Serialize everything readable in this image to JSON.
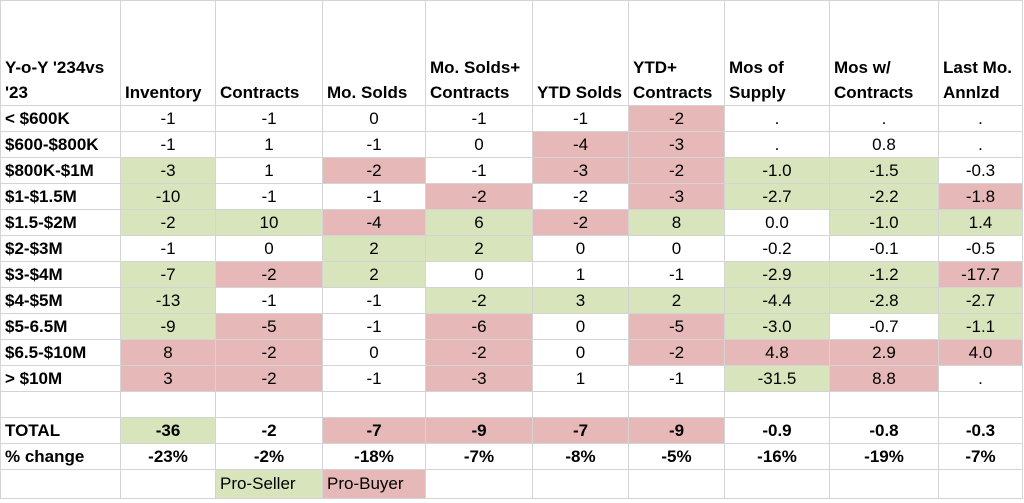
{
  "colors": {
    "green": "#d8e4bc",
    "red": "#e6b8b7",
    "grid": "#d4d4d4"
  },
  "headers": [
    "Y-o-Y '234vs '23",
    "Inventory",
    "Contracts",
    "Mo. Solds",
    "Mo. Solds+ Contracts",
    "YTD Solds",
    "YTD+ Contracts",
    "Mos of Supply",
    "Mos w/ Contracts",
    "Last Mo. Annlzd"
  ],
  "rows": [
    {
      "label": "< $600K",
      "cells": [
        {
          "v": "-1",
          "c": ""
        },
        {
          "v": "-1",
          "c": ""
        },
        {
          "v": "0",
          "c": ""
        },
        {
          "v": "-1",
          "c": ""
        },
        {
          "v": "-1",
          "c": ""
        },
        {
          "v": "-2",
          "c": "red"
        },
        {
          "v": ".",
          "c": ""
        },
        {
          "v": ".",
          "c": ""
        },
        {
          "v": ".",
          "c": ""
        }
      ]
    },
    {
      "label": "$600-$800K",
      "cells": [
        {
          "v": "-1",
          "c": ""
        },
        {
          "v": "1",
          "c": ""
        },
        {
          "v": "-1",
          "c": ""
        },
        {
          "v": "0",
          "c": ""
        },
        {
          "v": "-4",
          "c": "red"
        },
        {
          "v": "-3",
          "c": "red"
        },
        {
          "v": ".",
          "c": ""
        },
        {
          "v": "0.8",
          "c": ""
        },
        {
          "v": ".",
          "c": ""
        }
      ]
    },
    {
      "label": "$800K-$1M",
      "cells": [
        {
          "v": "-3",
          "c": "green"
        },
        {
          "v": "1",
          "c": ""
        },
        {
          "v": "-2",
          "c": "red"
        },
        {
          "v": "-1",
          "c": ""
        },
        {
          "v": "-3",
          "c": "red"
        },
        {
          "v": "-2",
          "c": "red"
        },
        {
          "v": "-1.0",
          "c": "green"
        },
        {
          "v": "-1.5",
          "c": "green"
        },
        {
          "v": "-0.3",
          "c": ""
        }
      ]
    },
    {
      "label": "$1-$1.5M",
      "cells": [
        {
          "v": "-10",
          "c": "green"
        },
        {
          "v": "-1",
          "c": ""
        },
        {
          "v": "-1",
          "c": ""
        },
        {
          "v": "-2",
          "c": "red"
        },
        {
          "v": "-2",
          "c": ""
        },
        {
          "v": "-3",
          "c": "red"
        },
        {
          "v": "-2.7",
          "c": "green"
        },
        {
          "v": "-2.2",
          "c": "green"
        },
        {
          "v": "-1.8",
          "c": "red"
        }
      ]
    },
    {
      "label": "$1.5-$2M",
      "cells": [
        {
          "v": "-2",
          "c": "green"
        },
        {
          "v": "10",
          "c": "green"
        },
        {
          "v": "-4",
          "c": "red"
        },
        {
          "v": "6",
          "c": "green"
        },
        {
          "v": "-2",
          "c": "red"
        },
        {
          "v": "8",
          "c": "green"
        },
        {
          "v": "0.0",
          "c": ""
        },
        {
          "v": "-1.0",
          "c": "green"
        },
        {
          "v": "1.4",
          "c": "green"
        }
      ]
    },
    {
      "label": "$2-$3M",
      "cells": [
        {
          "v": "-1",
          "c": ""
        },
        {
          "v": "0",
          "c": ""
        },
        {
          "v": "2",
          "c": "green"
        },
        {
          "v": "2",
          "c": "green"
        },
        {
          "v": "0",
          "c": ""
        },
        {
          "v": "0",
          "c": ""
        },
        {
          "v": "-0.2",
          "c": ""
        },
        {
          "v": "-0.1",
          "c": ""
        },
        {
          "v": "-0.5",
          "c": ""
        }
      ]
    },
    {
      "label": "$3-$4M",
      "cells": [
        {
          "v": "-7",
          "c": "green"
        },
        {
          "v": "-2",
          "c": "red"
        },
        {
          "v": "2",
          "c": "green"
        },
        {
          "v": "0",
          "c": ""
        },
        {
          "v": "1",
          "c": ""
        },
        {
          "v": "-1",
          "c": ""
        },
        {
          "v": "-2.9",
          "c": "green"
        },
        {
          "v": "-1.2",
          "c": "green"
        },
        {
          "v": "-17.7",
          "c": "red"
        }
      ]
    },
    {
      "label": "$4-$5M",
      "cells": [
        {
          "v": "-13",
          "c": "green"
        },
        {
          "v": "-1",
          "c": ""
        },
        {
          "v": "-1",
          "c": ""
        },
        {
          "v": "-2",
          "c": "green"
        },
        {
          "v": "3",
          "c": "green"
        },
        {
          "v": "2",
          "c": "green"
        },
        {
          "v": "-4.4",
          "c": "green"
        },
        {
          "v": "-2.8",
          "c": "green"
        },
        {
          "v": "-2.7",
          "c": "green"
        }
      ]
    },
    {
      "label": "$5-6.5M",
      "cells": [
        {
          "v": "-9",
          "c": "green"
        },
        {
          "v": "-5",
          "c": "red"
        },
        {
          "v": "-1",
          "c": ""
        },
        {
          "v": "-6",
          "c": "red"
        },
        {
          "v": "0",
          "c": ""
        },
        {
          "v": "-5",
          "c": "red"
        },
        {
          "v": "-3.0",
          "c": "green"
        },
        {
          "v": "-0.7",
          "c": ""
        },
        {
          "v": "-1.1",
          "c": "green"
        }
      ]
    },
    {
      "label": "$6.5-$10M",
      "cells": [
        {
          "v": "8",
          "c": "red"
        },
        {
          "v": "-2",
          "c": "red"
        },
        {
          "v": "0",
          "c": ""
        },
        {
          "v": "-2",
          "c": "red"
        },
        {
          "v": "0",
          "c": ""
        },
        {
          "v": "-2",
          "c": "red"
        },
        {
          "v": "4.8",
          "c": "red"
        },
        {
          "v": "2.9",
          "c": "red"
        },
        {
          "v": "4.0",
          "c": "red"
        }
      ]
    },
    {
      "label": "> $10M",
      "cells": [
        {
          "v": "3",
          "c": "red"
        },
        {
          "v": "-2",
          "c": "red"
        },
        {
          "v": "-1",
          "c": ""
        },
        {
          "v": "-3",
          "c": "red"
        },
        {
          "v": "1",
          "c": ""
        },
        {
          "v": "-1",
          "c": ""
        },
        {
          "v": "-31.5",
          "c": "green"
        },
        {
          "v": "8.8",
          "c": "red"
        },
        {
          "v": ".",
          "c": ""
        }
      ]
    }
  ],
  "total": {
    "label": "TOTAL",
    "cells": [
      {
        "v": "-36",
        "c": "green"
      },
      {
        "v": "-2",
        "c": ""
      },
      {
        "v": "-7",
        "c": "red"
      },
      {
        "v": "-9",
        "c": "red"
      },
      {
        "v": "-7",
        "c": "red"
      },
      {
        "v": "-9",
        "c": "red"
      },
      {
        "v": "-0.9",
        "c": ""
      },
      {
        "v": "-0.8",
        "c": ""
      },
      {
        "v": "-0.3",
        "c": ""
      }
    ]
  },
  "pct": {
    "label": "% change",
    "cells": [
      {
        "v": "-23%",
        "c": ""
      },
      {
        "v": "-2%",
        "c": ""
      },
      {
        "v": "-18%",
        "c": ""
      },
      {
        "v": "-7%",
        "c": ""
      },
      {
        "v": "-8%",
        "c": ""
      },
      {
        "v": "-5%",
        "c": ""
      },
      {
        "v": "-16%",
        "c": ""
      },
      {
        "v": "-19%",
        "c": ""
      },
      {
        "v": "-7%",
        "c": ""
      }
    ]
  },
  "legend": {
    "pro_seller": "Pro-Seller",
    "pro_buyer": "Pro-Buyer"
  }
}
